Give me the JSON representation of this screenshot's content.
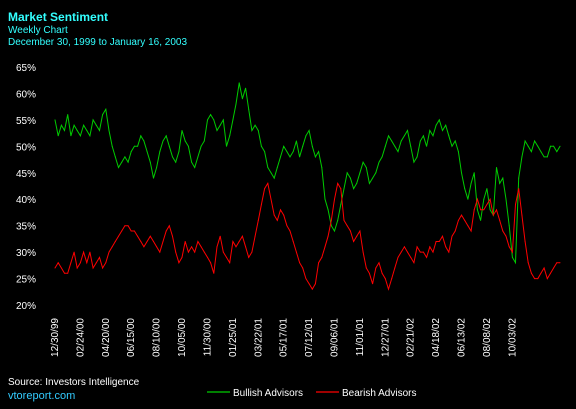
{
  "chart_data": {
    "type": "line",
    "title": "Market Sentiment",
    "subtitle": "Weekly Chart",
    "date_range": "December 30, 1999 to January 16, 2003",
    "source": "Source: Investors Intelligence",
    "website": "vtoreport.com",
    "xlabel": "",
    "ylabel": "",
    "ylim": [
      20,
      65
    ],
    "y_ticks": [
      "20%",
      "25%",
      "30%",
      "35%",
      "40%",
      "45%",
      "50%",
      "55%",
      "60%",
      "65%"
    ],
    "y_tick_values": [
      20,
      25,
      30,
      35,
      40,
      45,
      50,
      55,
      60,
      65
    ],
    "x_tick_labels": [
      "12/30/99",
      "02/24/00",
      "04/20/00",
      "06/15/00",
      "08/10/00",
      "10/05/00",
      "11/30/00",
      "01/25/01",
      "03/22/01",
      "05/17/01",
      "07/12/01",
      "09/06/01",
      "11/01/01",
      "12/27/01",
      "02/21/02",
      "04/18/02",
      "06/13/02",
      "08/08/02",
      "10/03/02"
    ],
    "x_tick_week_index": [
      0,
      8,
      16,
      24,
      32,
      40,
      48,
      56,
      64,
      72,
      80,
      88,
      96,
      104,
      112,
      120,
      128,
      136,
      144
    ],
    "x_range_weeks": [
      0,
      159
    ],
    "grid": false,
    "legend": "bottom",
    "colors": {
      "background": "#000000",
      "title": "#33ffff",
      "axis": "#ffffff",
      "bullish": "#00cc00",
      "bearish": "#ff0000",
      "website": "#33ccff"
    },
    "series": [
      {
        "name": "Bullish Advisors",
        "color": "#00cc00",
        "values": [
          55,
          52,
          54,
          53,
          56,
          52,
          54,
          53,
          52,
          54,
          53,
          52,
          55,
          54,
          53,
          56,
          57,
          53,
          50,
          48,
          46,
          47,
          48,
          47,
          49,
          50,
          50,
          52,
          51,
          49,
          47,
          44,
          46,
          49,
          51,
          52,
          50,
          48,
          47,
          49,
          53,
          51,
          50,
          47,
          46,
          48,
          50,
          51,
          55,
          56,
          55,
          53,
          54,
          55,
          50,
          52,
          55,
          58,
          62,
          59,
          61,
          57,
          53,
          54,
          53,
          50,
          49,
          46,
          45,
          44,
          46,
          48,
          50,
          49,
          48,
          49,
          51,
          48,
          50,
          52,
          53,
          50,
          48,
          49,
          46,
          40,
          38,
          35,
          34,
          36,
          39,
          42,
          45,
          44,
          42,
          43,
          45,
          47,
          46,
          43,
          44,
          45,
          47,
          48,
          50,
          52,
          51,
          50,
          49,
          51,
          52,
          53,
          50,
          47,
          48,
          51,
          52,
          50,
          53,
          52,
          54,
          55,
          53,
          54,
          52,
          50,
          51,
          49,
          45,
          42,
          40,
          43,
          45,
          38,
          36,
          40,
          42,
          38,
          37,
          46,
          43,
          44,
          40,
          35,
          29,
          28,
          44,
          48,
          51,
          50,
          49,
          51,
          50,
          49,
          48,
          48,
          50,
          50,
          49,
          50
        ]
      },
      {
        "name": "Bearish Advisors",
        "color": "#ff0000",
        "values": [
          27,
          28,
          27,
          26,
          26,
          28,
          30,
          27,
          28,
          30,
          28,
          30,
          27,
          28,
          29,
          27,
          28,
          30,
          31,
          32,
          33,
          34,
          35,
          35,
          34,
          34,
          33,
          32,
          31,
          32,
          33,
          32,
          31,
          30,
          32,
          34,
          35,
          33,
          30,
          28,
          29,
          32,
          30,
          31,
          30,
          32,
          31,
          30,
          29,
          28,
          26,
          31,
          33,
          30,
          29,
          28,
          32,
          31,
          32,
          33,
          31,
          29,
          30,
          33,
          36,
          39,
          42,
          43,
          40,
          37,
          36,
          38,
          37,
          35,
          34,
          32,
          30,
          28,
          27,
          25,
          24,
          23,
          24,
          28,
          29,
          31,
          33,
          36,
          40,
          43,
          42,
          36,
          35,
          34,
          32,
          33,
          34,
          30,
          27,
          26,
          24,
          27,
          28,
          26,
          25,
          23,
          25,
          27,
          29,
          30,
          31,
          30,
          29,
          28,
          31,
          30,
          30,
          29,
          31,
          30,
          32,
          32,
          33,
          31,
          30,
          33,
          34,
          36,
          37,
          36,
          35,
          34,
          38,
          40,
          38,
          38,
          39,
          40,
          37,
          38,
          36,
          34,
          33,
          31,
          30,
          39,
          42,
          37,
          32,
          28,
          26,
          25,
          25,
          26,
          27,
          25,
          26,
          27,
          28,
          28
        ]
      }
    ]
  }
}
